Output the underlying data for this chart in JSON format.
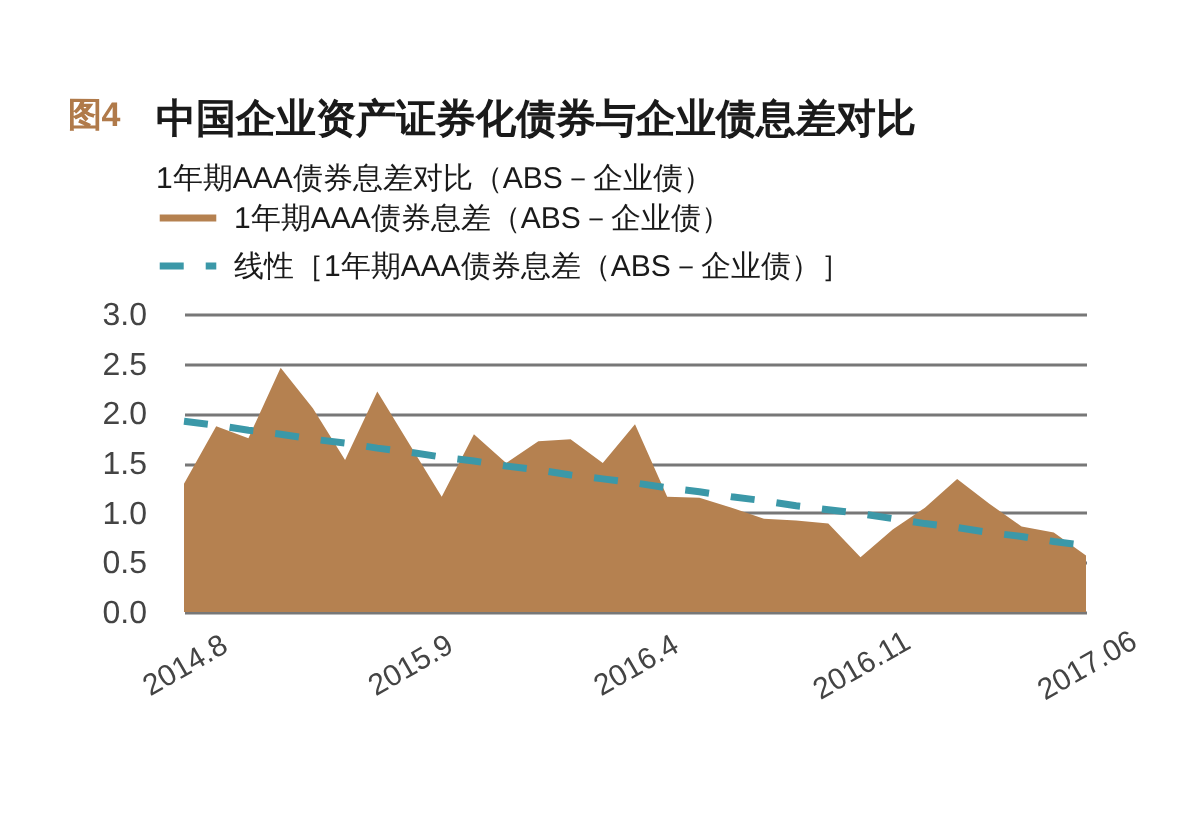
{
  "chart_data": {
    "type": "area",
    "title": "中国企业资产证券化债券与企业债息差对比",
    "subtitle": "1年期AAA债券息差对比（ABS－企业债）",
    "annotations": [
      "图4"
    ],
    "categories": [
      "2014.8",
      null,
      null,
      null,
      null,
      null,
      null,
      "2015.9",
      null,
      null,
      null,
      null,
      null,
      null,
      "2016.4",
      null,
      null,
      null,
      null,
      null,
      null,
      "2016.11",
      null,
      null,
      null,
      null,
      null,
      null,
      "2017.06"
    ],
    "series": [
      {
        "name": "1年期AAA债券息差（ABS－企业债）",
        "color": "#b58150",
        "values": [
          1.29,
          1.87,
          1.75,
          2.46,
          2.05,
          1.53,
          2.22,
          1.69,
          1.16,
          1.79,
          1.5,
          1.72,
          1.74,
          1.5,
          1.89,
          1.16,
          1.15,
          1.05,
          0.94,
          0.92,
          0.89,
          0.55,
          0.83,
          1.05,
          1.34,
          1.09,
          0.86,
          0.8,
          0.57
        ]
      },
      {
        "name": "线性［1年期AAA债券息差（ABS－企业债）］",
        "type": "line",
        "line_style": "dashed",
        "color": "#3b98a8",
        "values": [
          1.92,
          1.88,
          1.83,
          1.79,
          1.74,
          1.7,
          1.65,
          1.61,
          1.56,
          1.52,
          1.47,
          1.43,
          1.38,
          1.34,
          1.3,
          1.25,
          1.21,
          1.16,
          1.12,
          1.07,
          1.03,
          0.99,
          0.94,
          0.89,
          0.85,
          0.8,
          0.76,
          0.71,
          0.67
        ]
      }
    ],
    "ylim": [
      0,
      3
    ],
    "yticks": [
      {
        "value": 0,
        "label": "0.0"
      },
      0.5,
      {
        "value": 1,
        "label": "1.0"
      },
      1.5,
      {
        "value": 2,
        "label": "2.0"
      },
      2.5,
      {
        "value": 3,
        "label": "3.0"
      }
    ],
    "grid": "y",
    "legend": "top left"
  }
}
